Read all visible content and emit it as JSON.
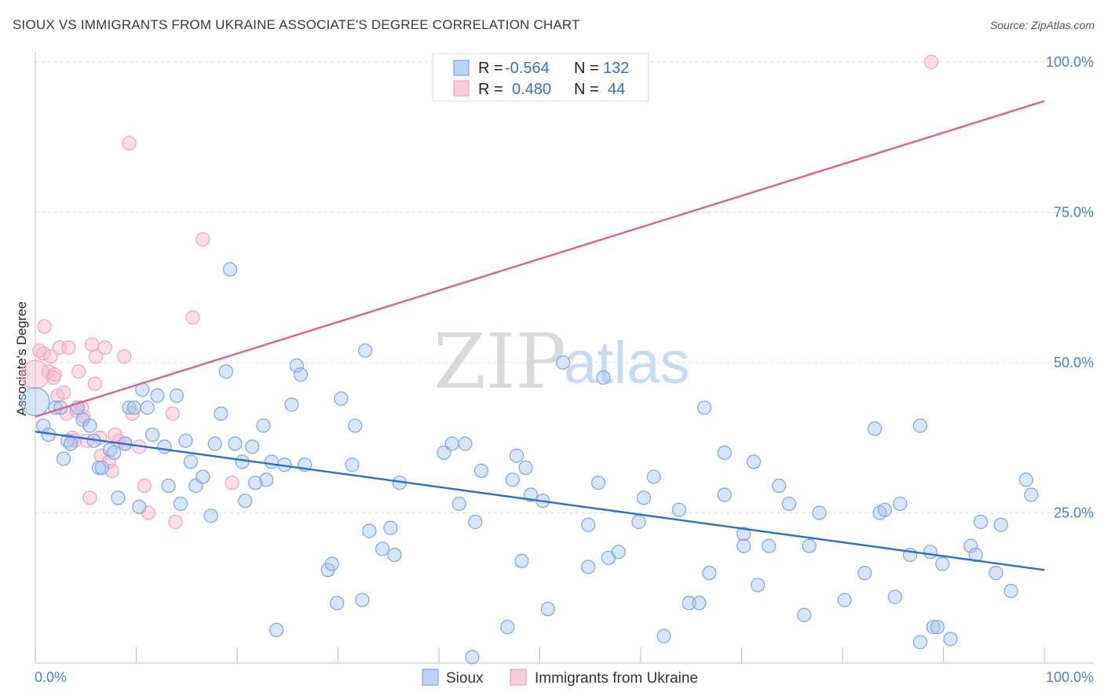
{
  "title": "SIOUX VS IMMIGRANTS FROM UKRAINE ASSOCIATE'S DEGREE CORRELATION CHART",
  "source": "Source: ZipAtlas.com",
  "watermark": {
    "part1": "ZIP",
    "part2": "atlas"
  },
  "legend_top": {
    "rows": [
      {
        "r_label": "R = ",
        "r_value": "-0.564",
        "n_label": "N = ",
        "n_value": "132"
      },
      {
        "r_label": "R = ",
        "r_value": "0.480",
        "n_label": "N = ",
        "n_value": "44"
      }
    ]
  },
  "legend_bottom": {
    "items": [
      "Sioux",
      "Immigrants from Ukraine"
    ]
  },
  "colors": {
    "sioux": "#7aa7e6",
    "sioux_line": "#2a6fd6",
    "ukraine": "#f2a3bd",
    "ukraine_line": "#e0608e",
    "axis_text": "#4a7fd4"
  },
  "chart_data": {
    "type": "scatter",
    "title": "SIOUX VS IMMIGRANTS FROM UKRAINE ASSOCIATE'S DEGREE CORRELATION CHART",
    "xlabel": "",
    "ylabel": "Associate's Degree",
    "xlim": [
      0,
      100
    ],
    "ylim": [
      0,
      100
    ],
    "x_tick_labels": [
      "0.0%",
      "100.0%"
    ],
    "y_tick_labels": [
      "25.0%",
      "50.0%",
      "75.0%",
      "100.0%"
    ],
    "y_ticks": [
      25,
      50,
      75,
      100
    ],
    "grid": true,
    "legend_position": "top-center",
    "series": [
      {
        "name": "Sioux",
        "R": -0.564,
        "N": 132,
        "trend": {
          "x": [
            0,
            100
          ],
          "y": [
            38.5,
            15.5
          ]
        },
        "points": [
          [
            0,
            43.5
          ],
          [
            0.8,
            39.5
          ],
          [
            1.3,
            38
          ],
          [
            2,
            42.5
          ],
          [
            2.5,
            42.5
          ],
          [
            2.8,
            34
          ],
          [
            3.2,
            37
          ],
          [
            3.5,
            36.5
          ],
          [
            4.2,
            42.5
          ],
          [
            4.7,
            40.5
          ],
          [
            5.4,
            39.5
          ],
          [
            5.8,
            37
          ],
          [
            6.3,
            32.5
          ],
          [
            6.6,
            32.5
          ],
          [
            7.4,
            35.5
          ],
          [
            7.8,
            35
          ],
          [
            8.2,
            27.5
          ],
          [
            8.9,
            36.5
          ],
          [
            9.3,
            42.5
          ],
          [
            9.8,
            42.5
          ],
          [
            10.3,
            26
          ],
          [
            10.6,
            45.5
          ],
          [
            11.1,
            42.5
          ],
          [
            11.6,
            38
          ],
          [
            12.1,
            44.5
          ],
          [
            12.8,
            36
          ],
          [
            13.2,
            29.5
          ],
          [
            14,
            44.5
          ],
          [
            14.4,
            26.5
          ],
          [
            14.9,
            37
          ],
          [
            15.4,
            33.5
          ],
          [
            15.9,
            29.5
          ],
          [
            16.6,
            31
          ],
          [
            17.4,
            24.5
          ],
          [
            17.8,
            36.5
          ],
          [
            18.4,
            41.5
          ],
          [
            18.9,
            48.5
          ],
          [
            19.3,
            65.5
          ],
          [
            19.8,
            36.5
          ],
          [
            20.5,
            33.5
          ],
          [
            20.8,
            27
          ],
          [
            21.5,
            36
          ],
          [
            21.8,
            30
          ],
          [
            22.6,
            39.5
          ],
          [
            22.9,
            30.5
          ],
          [
            23.4,
            33.5
          ],
          [
            23.9,
            5.5
          ],
          [
            24.7,
            33
          ],
          [
            25.4,
            43
          ],
          [
            25.9,
            49.5
          ],
          [
            26.3,
            48
          ],
          [
            26.7,
            33
          ],
          [
            29,
            15.5
          ],
          [
            29.4,
            16.5
          ],
          [
            29.9,
            10
          ],
          [
            30.3,
            44
          ],
          [
            31.4,
            33
          ],
          [
            31.7,
            39.5
          ],
          [
            32.4,
            10.5
          ],
          [
            32.7,
            52
          ],
          [
            33.1,
            22
          ],
          [
            34.4,
            19
          ],
          [
            35.2,
            22.5
          ],
          [
            35.6,
            18
          ],
          [
            36.1,
            30
          ],
          [
            40.5,
            35
          ],
          [
            41.3,
            36.5
          ],
          [
            42,
            26.5
          ],
          [
            42.6,
            36.5
          ],
          [
            43.3,
            1
          ],
          [
            43.6,
            23.5
          ],
          [
            44.2,
            32
          ],
          [
            46.8,
            6
          ],
          [
            47.3,
            30.5
          ],
          [
            47.7,
            34.5
          ],
          [
            48.2,
            17
          ],
          [
            48.6,
            32.5
          ],
          [
            49.1,
            28
          ],
          [
            50.3,
            27
          ],
          [
            50.8,
            9
          ],
          [
            52.3,
            50
          ],
          [
            54.8,
            16
          ],
          [
            54.8,
            23
          ],
          [
            55.8,
            30
          ],
          [
            56.3,
            47.5
          ],
          [
            56.8,
            17.5
          ],
          [
            57.8,
            18.5
          ],
          [
            59.8,
            23.5
          ],
          [
            60.3,
            27.5
          ],
          [
            61.3,
            31
          ],
          [
            62.3,
            4.5
          ],
          [
            63.8,
            25.5
          ],
          [
            64.8,
            10
          ],
          [
            65.8,
            10
          ],
          [
            66.3,
            42.5
          ],
          [
            66.8,
            15
          ],
          [
            68.3,
            35
          ],
          [
            68.3,
            28
          ],
          [
            70.2,
            21.5
          ],
          [
            70.2,
            19.5
          ],
          [
            71.2,
            33.5
          ],
          [
            71.6,
            13
          ],
          [
            72.7,
            19.5
          ],
          [
            73.7,
            29.5
          ],
          [
            74.7,
            26.5
          ],
          [
            76.2,
            8
          ],
          [
            76.7,
            19.5
          ],
          [
            77.7,
            25
          ],
          [
            80.2,
            10.5
          ],
          [
            82.2,
            15
          ],
          [
            83.2,
            39
          ],
          [
            83.7,
            25
          ],
          [
            84.2,
            25.5
          ],
          [
            85.2,
            11
          ],
          [
            85.7,
            26.5
          ],
          [
            86.7,
            18
          ],
          [
            87.7,
            39.5
          ],
          [
            87.7,
            3.5
          ],
          [
            88.7,
            18.5
          ],
          [
            89,
            6
          ],
          [
            89.4,
            6
          ],
          [
            89.9,
            16.5
          ],
          [
            90.7,
            4
          ],
          [
            92.7,
            19.5
          ],
          [
            93.2,
            18
          ],
          [
            93.7,
            23.5
          ],
          [
            95.2,
            15
          ],
          [
            95.7,
            23
          ],
          [
            96.7,
            12
          ],
          [
            98.2,
            30.5
          ],
          [
            98.7,
            28
          ]
        ]
      },
      {
        "name": "Immigrants from Ukraine",
        "R": 0.48,
        "N": 44,
        "trend": {
          "x": [
            0,
            100
          ],
          "y": [
            41,
            93.5
          ]
        },
        "points": [
          [
            0,
            48
          ],
          [
            0.4,
            52
          ],
          [
            0.8,
            51.5
          ],
          [
            0.9,
            56
          ],
          [
            1.3,
            48.5
          ],
          [
            1.5,
            51
          ],
          [
            1.8,
            47.5
          ],
          [
            1.9,
            48
          ],
          [
            2.2,
            44.5
          ],
          [
            2.4,
            52.5
          ],
          [
            2.8,
            45
          ],
          [
            3.1,
            41.5
          ],
          [
            3.3,
            52.5
          ],
          [
            3.7,
            37.5
          ],
          [
            3.9,
            37
          ],
          [
            4.1,
            42
          ],
          [
            4.3,
            48.5
          ],
          [
            4.6,
            42.5
          ],
          [
            4.8,
            41
          ],
          [
            5.1,
            37
          ],
          [
            5.4,
            27.5
          ],
          [
            5.6,
            53
          ],
          [
            5.9,
            46.5
          ],
          [
            6,
            51
          ],
          [
            6.4,
            37.5
          ],
          [
            6.5,
            34.5
          ],
          [
            6.9,
            52.5
          ],
          [
            7.3,
            33.5
          ],
          [
            7.6,
            32
          ],
          [
            7.9,
            38
          ],
          [
            8.3,
            37
          ],
          [
            8.8,
            51
          ],
          [
            8.9,
            36.5
          ],
          [
            9.3,
            86.5
          ],
          [
            9.6,
            41.5
          ],
          [
            10.3,
            36
          ],
          [
            10.8,
            29.5
          ],
          [
            11.2,
            25
          ],
          [
            13.6,
            41.5
          ],
          [
            13.9,
            23.5
          ],
          [
            16.6,
            70.5
          ],
          [
            15.6,
            57.5
          ],
          [
            19.5,
            30
          ],
          [
            88.8,
            100
          ]
        ]
      }
    ]
  }
}
